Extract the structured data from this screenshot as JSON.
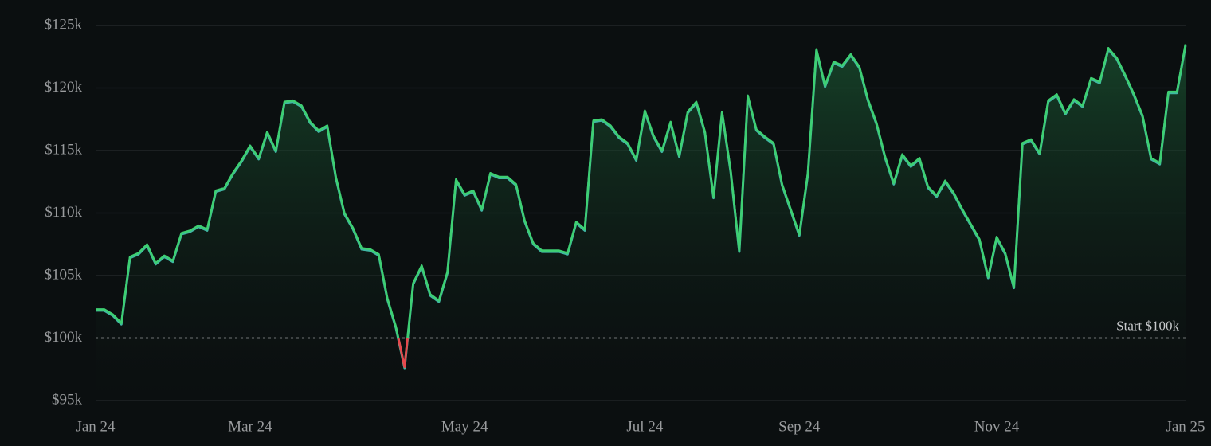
{
  "chart_data": {
    "type": "line",
    "categories": [
      "Jan 24",
      null,
      null,
      null,
      null,
      null,
      null,
      null,
      null,
      null,
      null,
      null,
      null,
      null,
      null,
      null,
      null,
      null,
      "Mar 24",
      null,
      null,
      null,
      null,
      null,
      null,
      null,
      null,
      null,
      null,
      null,
      null,
      null,
      null,
      null,
      null,
      null,
      null,
      null,
      null,
      null,
      null,
      null,
      null,
      "May 24",
      null,
      null,
      null,
      null,
      null,
      null,
      null,
      null,
      null,
      null,
      null,
      null,
      null,
      null,
      null,
      null,
      null,
      null,
      null,
      null,
      "Jul 24",
      null,
      null,
      null,
      null,
      null,
      null,
      null,
      null,
      null,
      null,
      null,
      null,
      null,
      null,
      null,
      null,
      null,
      "Sep 24",
      null,
      null,
      null,
      null,
      null,
      null,
      null,
      null,
      null,
      null,
      null,
      null,
      null,
      null,
      null,
      null,
      null,
      null,
      null,
      null,
      null,
      null,
      "Nov 24",
      null,
      null,
      null,
      null,
      null,
      null,
      null,
      null,
      null,
      null,
      null,
      null,
      null,
      null,
      null,
      null,
      null,
      null,
      null,
      null,
      null,
      "Jan 25"
    ],
    "values": [
      102.3,
      102.3,
      101.9,
      101.2,
      106.5,
      106.8,
      107.5,
      106.0,
      106.6,
      106.2,
      108.4,
      108.6,
      109.0,
      108.7,
      111.8,
      112.0,
      113.2,
      114.2,
      115.4,
      114.4,
      116.5,
      115.0,
      118.9,
      119.0,
      118.6,
      117.3,
      116.6,
      117.0,
      112.9,
      110.0,
      108.8,
      107.2,
      107.1,
      106.7,
      103.2,
      100.9,
      97.7,
      104.4,
      105.8,
      103.5,
      103.0,
      105.3,
      112.7,
      111.5,
      111.8,
      110.3,
      113.2,
      112.9,
      112.9,
      112.3,
      109.4,
      107.6,
      107.0,
      107.0,
      107.0,
      106.8,
      109.3,
      108.7,
      117.4,
      117.5,
      117.0,
      116.1,
      115.6,
      114.3,
      118.2,
      116.2,
      115.0,
      117.3,
      114.6,
      118.1,
      118.9,
      116.5,
      111.3,
      118.1,
      113.4,
      107.0,
      119.4,
      116.7,
      116.1,
      115.6,
      112.3,
      110.3,
      108.3,
      113.2,
      123.1,
      120.2,
      122.1,
      121.8,
      122.7,
      121.7,
      119.1,
      117.2,
      114.5,
      112.4,
      114.7,
      113.8,
      114.4,
      112.1,
      111.4,
      112.6,
      111.6,
      110.3,
      109.1,
      107.9,
      104.9,
      108.1,
      106.8,
      104.1,
      115.6,
      115.9,
      114.8,
      119.0,
      119.5,
      118.0,
      119.1,
      118.6,
      120.8,
      120.5,
      123.2,
      122.4,
      121.0,
      119.5,
      117.8,
      114.4,
      114.0,
      119.7,
      119.7,
      123.5
    ],
    "color": "#3ecf72",
    "negative_color": "#e5484d",
    "ylim": [
      95,
      125
    ],
    "yticks": [
      {
        "value": 95,
        "label": "$95k"
      },
      {
        "value": 100,
        "label": "$100k"
      },
      {
        "value": 105,
        "label": "$105k"
      },
      {
        "value": 110,
        "label": "$110k"
      },
      {
        "value": 115,
        "label": "$115k"
      },
      {
        "value": 120,
        "label": "$120k"
      },
      {
        "value": 125,
        "label": "$125k"
      }
    ],
    "grid": true,
    "baseline": 100,
    "baseline_label": "Start $100k"
  }
}
